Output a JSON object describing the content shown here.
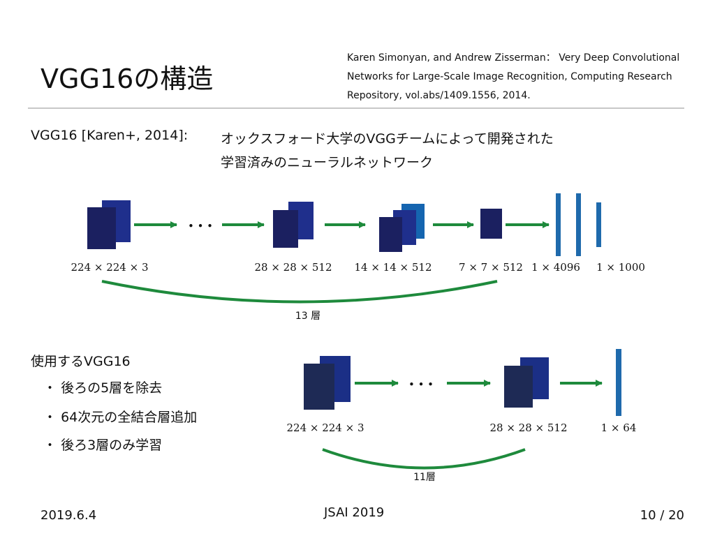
{
  "slide": {
    "title": "VGG16の構造",
    "reference": [
      "Karen Simonyan,  and Andrew Zisserman： Very Deep Convolutional",
      "Networks for Large-Scale Image Recognition,  Computing Research",
      "Repository,  vol.abs/1409.1556,  2014."
    ],
    "vgg_label": "VGG16 [Karen+,  2014]:",
    "description": [
      "オックスフォード大学のVGGチームによって開発された",
      "学習済みのニューラルネットワーク"
    ],
    "usage_title": "使用するVGG16",
    "bullets": [
      "後ろの5層を除去",
      "64次元の全結合層追加",
      "後ろ3層のみ学習"
    ],
    "bullet_symbol": "・"
  },
  "diagram_top": {
    "dots": "• • •",
    "labels": [
      "224 × 224 × 3",
      "28 × 28 × 512",
      "14 × 14 × 512",
      "7 × 7 × 512",
      "1 × 4096",
      "1 × 1000"
    ],
    "layer_count": "13 層"
  },
  "diagram_bottom": {
    "dots": "• • •",
    "labels": [
      "224 × 224 × 3",
      "28 × 28 × 512",
      "1 × 64"
    ],
    "layer_count": "11層"
  },
  "footer": {
    "date": "2019.6.4",
    "venue": "JSAI 2019",
    "page": "10 / 20"
  },
  "colors": {
    "block_dark": "#1b2060",
    "block_mid": "#1f2f8c",
    "block_bright": "#1565b0",
    "fc_bar": "#1f6aac",
    "arrow_green": "#1e8a3c",
    "block_dark_bottom": "#1e2a55",
    "block_mid_bottom": "#1b2f86"
  }
}
